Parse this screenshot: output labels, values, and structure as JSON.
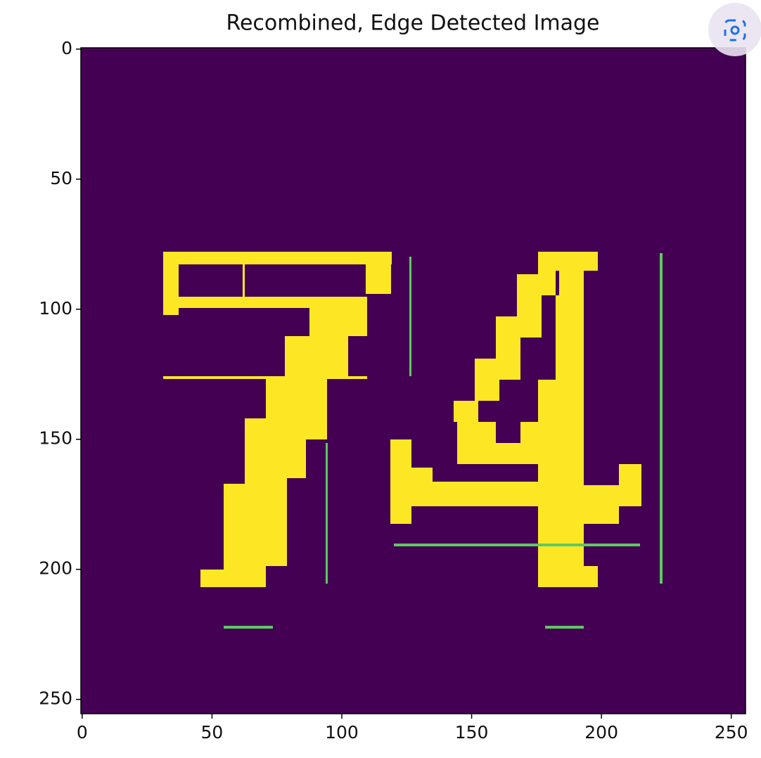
{
  "chart_data": {
    "type": "image",
    "title": "Recombined, Edge Detected Image",
    "xlim": [
      -0.5,
      255.5
    ],
    "ylim": [
      255.5,
      -0.5
    ],
    "xticks": [
      0,
      50,
      100,
      150,
      200,
      250
    ],
    "yticks": [
      0,
      50,
      100,
      150,
      200,
      250
    ],
    "background": "#440154",
    "color": "#fde725"
  }
}
